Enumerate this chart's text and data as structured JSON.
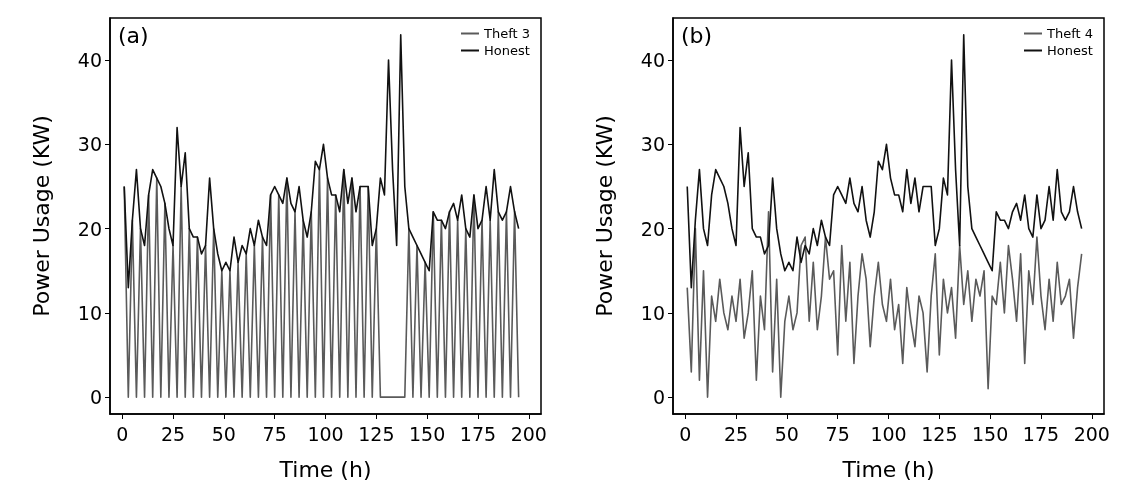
{
  "chart_data": [
    {
      "type": "line",
      "annotations": [
        "(a)"
      ],
      "xlabel": "Time (h)",
      "ylabel": "Power Usage (KW)",
      "xlim": [
        -6,
        206
      ],
      "xticks": [
        0,
        25,
        50,
        75,
        100,
        125,
        150,
        175,
        200
      ],
      "ylim": [
        -2,
        45
      ],
      "yticks": [
        0,
        10,
        20,
        30,
        40
      ],
      "grid": false,
      "legend": "top right",
      "marker": "none",
      "line_style": "solid",
      "x": [
        1,
        3,
        5,
        7,
        9,
        11,
        13,
        15,
        17,
        19,
        21,
        23,
        25,
        27,
        29,
        31,
        33,
        35,
        37,
        39,
        41,
        43,
        45,
        47,
        49,
        51,
        53,
        55,
        57,
        59,
        61,
        63,
        65,
        67,
        69,
        71,
        73,
        75,
        77,
        79,
        81,
        83,
        85,
        87,
        89,
        91,
        93,
        95,
        97,
        99,
        101,
        103,
        105,
        107,
        109,
        111,
        113,
        115,
        117,
        119,
        121,
        123,
        125,
        127,
        129,
        131,
        133,
        135,
        137,
        139,
        141,
        143,
        145,
        147,
        149,
        151,
        153,
        155,
        157,
        159,
        161,
        163,
        165,
        167,
        169,
        171,
        173,
        175,
        177,
        179,
        181,
        183,
        185,
        187,
        189,
        191,
        193,
        195
      ],
      "series": [
        {
          "name": "Theft 3",
          "color": "#5a5a5a",
          "values": [
            25,
            0,
            21,
            0,
            20,
            0,
            24,
            0,
            26,
            0,
            23,
            0,
            18,
            0,
            25,
            0,
            20,
            0,
            19,
            0,
            18,
            0,
            20,
            0,
            15,
            0,
            15,
            0,
            16,
            0,
            17,
            0,
            18,
            0,
            19,
            0,
            24,
            0,
            24,
            0,
            26,
            0,
            22,
            0,
            21,
            0,
            22,
            0,
            27,
            0,
            26,
            0,
            24,
            0,
            27,
            0,
            26,
            0,
            25,
            0,
            25,
            0,
            20,
            0,
            0,
            0,
            0,
            0,
            0,
            0,
            20,
            0,
            18,
            0,
            16,
            0,
            22,
            0,
            21,
            0,
            22,
            0,
            21,
            0,
            20,
            0,
            24,
            0,
            21,
            0,
            21,
            0,
            22,
            0,
            22,
            0,
            22,
            0
          ]
        },
        {
          "name": "Honest",
          "color": "#111111",
          "values": [
            25,
            13,
            21,
            27,
            20,
            18,
            24,
            27,
            26,
            25,
            23,
            20,
            18,
            32,
            25,
            29,
            20,
            19,
            19,
            17,
            18,
            26,
            20,
            17,
            15,
            16,
            15,
            19,
            16,
            18,
            17,
            20,
            18,
            21,
            19,
            18,
            24,
            25,
            24,
            23,
            26,
            23,
            22,
            25,
            21,
            19,
            22,
            28,
            27,
            30,
            26,
            24,
            24,
            22,
            27,
            23,
            26,
            22,
            25,
            25,
            25,
            18,
            20,
            26,
            24,
            40,
            27,
            18,
            43,
            25,
            20,
            19,
            18,
            17,
            16,
            15,
            22,
            21,
            21,
            20,
            22,
            23,
            21,
            24,
            20,
            19,
            24,
            20,
            21,
            25,
            21,
            27,
            22,
            21,
            22,
            25,
            22,
            20
          ]
        }
      ]
    },
    {
      "type": "line",
      "annotations": [
        "(b)"
      ],
      "xlabel": "Time (h)",
      "ylabel": "Power Usage (KW)",
      "xlim": [
        -6,
        206
      ],
      "xticks": [
        0,
        25,
        50,
        75,
        100,
        125,
        150,
        175,
        200
      ],
      "ylim": [
        -2,
        45
      ],
      "yticks": [
        0,
        10,
        20,
        30,
        40
      ],
      "grid": false,
      "legend": "top right",
      "marker": "none",
      "line_style": "solid",
      "x": [
        1,
        3,
        5,
        7,
        9,
        11,
        13,
        15,
        17,
        19,
        21,
        23,
        25,
        27,
        29,
        31,
        33,
        35,
        37,
        39,
        41,
        43,
        45,
        47,
        49,
        51,
        53,
        55,
        57,
        59,
        61,
        63,
        65,
        67,
        69,
        71,
        73,
        75,
        77,
        79,
        81,
        83,
        85,
        87,
        89,
        91,
        93,
        95,
        97,
        99,
        101,
        103,
        105,
        107,
        109,
        111,
        113,
        115,
        117,
        119,
        121,
        123,
        125,
        127,
        129,
        131,
        133,
        135,
        137,
        139,
        141,
        143,
        145,
        147,
        149,
        151,
        153,
        155,
        157,
        159,
        161,
        163,
        165,
        167,
        169,
        171,
        173,
        175,
        177,
        179,
        181,
        183,
        185,
        187,
        189,
        191,
        193,
        195
      ],
      "series": [
        {
          "name": "Theft 4",
          "color": "#5a5a5a",
          "values": [
            13,
            3,
            20,
            2,
            15,
            0,
            12,
            9,
            14,
            10,
            8,
            12,
            9,
            14,
            7,
            10,
            15,
            2,
            12,
            8,
            22,
            3,
            14,
            0,
            9,
            12,
            8,
            10,
            18,
            19,
            9,
            16,
            8,
            12,
            19,
            14,
            15,
            5,
            18,
            9,
            16,
            4,
            12,
            17,
            14,
            6,
            12,
            16,
            11,
            9,
            14,
            8,
            11,
            4,
            13,
            9,
            6,
            12,
            10,
            3,
            12,
            17,
            5,
            14,
            10,
            13,
            7,
            18,
            11,
            15,
            9,
            14,
            12,
            15,
            1,
            12,
            11,
            16,
            10,
            18,
            14,
            9,
            17,
            4,
            15,
            11,
            19,
            12,
            8,
            14,
            9,
            16,
            11,
            12,
            14,
            7,
            13,
            17
          ]
        },
        {
          "name": "Honest",
          "color": "#111111",
          "values": [
            25,
            13,
            21,
            27,
            20,
            18,
            24,
            27,
            26,
            25,
            23,
            20,
            18,
            32,
            25,
            29,
            20,
            19,
            19,
            17,
            18,
            26,
            20,
            17,
            15,
            16,
            15,
            19,
            16,
            18,
            17,
            20,
            18,
            21,
            19,
            18,
            24,
            25,
            24,
            23,
            26,
            23,
            22,
            25,
            21,
            19,
            22,
            28,
            27,
            30,
            26,
            24,
            24,
            22,
            27,
            23,
            26,
            22,
            25,
            25,
            25,
            18,
            20,
            26,
            24,
            40,
            27,
            18,
            43,
            25,
            20,
            19,
            18,
            17,
            16,
            15,
            22,
            21,
            21,
            20,
            22,
            23,
            21,
            24,
            20,
            19,
            24,
            20,
            21,
            25,
            21,
            27,
            22,
            21,
            22,
            25,
            22,
            20
          ]
        }
      ]
    }
  ]
}
